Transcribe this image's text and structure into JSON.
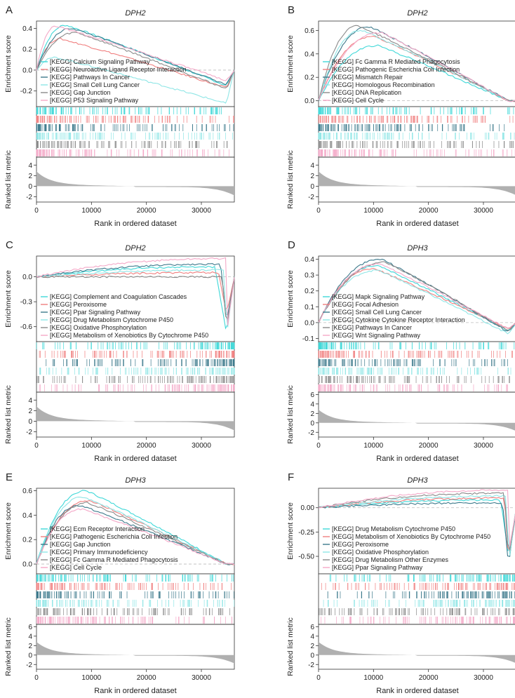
{
  "common": {
    "ylabel_top": "Enrichment score",
    "ylabel_bottom": "Ranked list metric",
    "xlabel": "Rank in ordered dataset",
    "x_ticks": [
      "0",
      "10000",
      "20000",
      "30000"
    ],
    "metric_ticks_a": [
      "4",
      "2",
      "0",
      "-2"
    ],
    "metric_ticks_b": [
      "6",
      "4",
      "2",
      "0",
      "-2"
    ],
    "colors": [
      "#3fd8d8",
      "#f07f7f",
      "#3d7a8c",
      "#8fe6e6",
      "#8a8a8a",
      "#f4a9c8"
    ]
  },
  "chart_data": [
    {
      "type": "line",
      "panel": "A",
      "title": "DPH2",
      "ylim": [
        -0.35,
        0.47
      ],
      "y_ticks": [
        0.4,
        0.2,
        0.0,
        -0.2
      ],
      "y_tick_labels": [
        "0.4",
        "0.2",
        "0.0",
        "-0.2"
      ],
      "legend_loc": "bottom-left",
      "legend": [
        "[KEGG] Calcium Signaling Pathway",
        "[KEGG] Neuroactive Ligand Receptor Interaction",
        "[KEGG] Pathways In Cancer",
        "[KEGG] Small Cell Lung Cancer",
        "[KEGG] Gap Junction",
        "[KEGG] P53 Signaling Pathway"
      ],
      "series": [
        {
          "name": "[KEGG] Calcium Signaling Pathway",
          "peak": 0.43,
          "end": -0.15,
          "peakX": 0.15
        },
        {
          "name": "[KEGG] Neuroactive Ligand Receptor Interaction",
          "peak": 0.3,
          "end": -0.17,
          "peakX": 0.12
        },
        {
          "name": "[KEGG] Pathways In Cancer",
          "peak": 0.4,
          "end": -0.14,
          "peakX": 0.18
        },
        {
          "name": "[KEGG] Small Cell Lung Cancer",
          "peak": 0.12,
          "end": -0.32,
          "peakX": 0.1
        },
        {
          "name": "[KEGG] Gap Junction",
          "peak": 0.36,
          "end": -0.18,
          "peakX": 0.2
        },
        {
          "name": "[KEGG] P53 Signaling Pathway",
          "peak": 0.42,
          "end": -0.1,
          "peakX": 0.1
        }
      ]
    },
    {
      "type": "line",
      "panel": "B",
      "title": "DPH2",
      "ylim": [
        -0.05,
        0.68
      ],
      "y_ticks": [
        0.6,
        0.4,
        0.2,
        0.0
      ],
      "y_tick_labels": [
        "0.6",
        "0.4",
        "0.2",
        "0.0"
      ],
      "legend_loc": "bottom-left",
      "legend": [
        "[KEGG] Fc Gamma R Mediated Phagocytosis",
        "[KEGG] Pathogenic Escherichia Coli Infection",
        "[KEGG] Mismatch Repair",
        "[KEGG] Homologous Recombination",
        "[KEGG] DNA Replication",
        "[KEGG] Cell Cycle"
      ],
      "series": [
        {
          "name": "[KEGG] Fc Gamma R Mediated Phagocytosis",
          "peak": 0.47,
          "end": 0.0,
          "peakX": 0.3
        },
        {
          "name": "[KEGG] Pathogenic Escherichia Coli Infection",
          "peak": 0.55,
          "end": 0.0,
          "peakX": 0.28
        },
        {
          "name": "[KEGG] Mismatch Repair",
          "peak": 0.63,
          "end": 0.0,
          "peakX": 0.26
        },
        {
          "name": "[KEGG] Homologous Recombination",
          "peak": 0.6,
          "end": 0.0,
          "peakX": 0.22
        },
        {
          "name": "[KEGG] DNA Replication",
          "peak": 0.64,
          "end": 0.0,
          "peakX": 0.2
        },
        {
          "name": "[KEGG] Cell Cycle",
          "peak": 0.58,
          "end": 0.0,
          "peakX": 0.32
        }
      ]
    },
    {
      "type": "line",
      "panel": "C",
      "title": "DPH2",
      "ylim": [
        -0.78,
        0.25
      ],
      "y_ticks": [
        0.0,
        -0.3,
        -0.6
      ],
      "y_tick_labels": [
        "0.0",
        "-0.3",
        "-0.6"
      ],
      "legend_loc": "bottom-left",
      "legend": [
        "[KEGG] Complement and Coagulation Cascades",
        "[KEGG] Peroxisome",
        "[KEGG] Ppar Signaling Pathway",
        "[KEGG] Drug Metabolism Cytochrome P450",
        "[KEGG] Oxidative Phosphorylation",
        "[KEGG] Metabolism of Xenobiotics By Cytochrome P450"
      ],
      "series": [
        {
          "name": "[KEGG] Complement and Coagulation Cascades",
          "peak": 0.12,
          "end": -0.68,
          "peakX": 0.9
        },
        {
          "name": "[KEGG] Peroxisome",
          "peak": 0.05,
          "end": -0.45,
          "peakX": 0.92
        },
        {
          "name": "[KEGG] Ppar Signaling Pathway",
          "peak": 0.15,
          "end": -0.55,
          "peakX": 0.93
        },
        {
          "name": "[KEGG] Drug Metabolism Cytochrome P450",
          "peak": 0.08,
          "end": -0.72,
          "peakX": 0.95
        },
        {
          "name": "[KEGG] Oxidative Phosphorylation",
          "peak": 0.0,
          "end": -0.62,
          "peakX": 0.94
        },
        {
          "name": "[KEGG] Metabolism of Xenobiotics By Cytochrome P450",
          "peak": 0.22,
          "end": -0.7,
          "peakX": 0.96
        }
      ]
    },
    {
      "type": "line",
      "panel": "D",
      "title": "DPH3",
      "ylim": [
        -0.12,
        0.42
      ],
      "y_ticks": [
        0.4,
        0.3,
        0.2,
        0.1,
        0.0,
        -0.1
      ],
      "y_tick_labels": [
        "0.4",
        "0.3",
        "0.2",
        "0.1",
        "0.0",
        "-0.1"
      ],
      "legend_loc": "bottom-left",
      "legend": [
        "[KEGG] Mapk Signaling Pathway",
        "[KEGG] Focal Adhesion",
        "[KEGG] Small Cell Lung Cancer",
        "[KEGG] Cytokine Cytokine Receptor Interaction",
        "[KEGG] Pathways In Cancer",
        "[KEGG] Wnt Signaling Pathway"
      ],
      "series": [
        {
          "name": "[KEGG] Mapk Signaling Pathway",
          "peak": 0.36,
          "end": -0.05,
          "peakX": 0.3
        },
        {
          "name": "[KEGG] Focal Adhesion",
          "peak": 0.34,
          "end": -0.04,
          "peakX": 0.28
        },
        {
          "name": "[KEGG] Small Cell Lung Cancer",
          "peak": 0.4,
          "end": -0.06,
          "peakX": 0.32
        },
        {
          "name": "[KEGG] Cytokine Cytokine Receptor Interaction",
          "peak": 0.33,
          "end": -0.07,
          "peakX": 0.3
        },
        {
          "name": "[KEGG] Pathways In Cancer",
          "peak": 0.38,
          "end": -0.05,
          "peakX": 0.34
        },
        {
          "name": "[KEGG] Wnt Signaling Pathway",
          "peak": 0.37,
          "end": -0.04,
          "peakX": 0.31
        }
      ]
    },
    {
      "type": "line",
      "panel": "E",
      "title": "DPH3",
      "ylim": [
        -0.08,
        0.62
      ],
      "y_ticks": [
        0.6,
        0.4,
        0.2,
        0.0
      ],
      "y_tick_labels": [
        "0.6",
        "0.4",
        "0.2",
        "0.0"
      ],
      "legend_loc": "bottom-left",
      "legend": [
        "[KEGG] Ecm Receptor Interaction",
        "[KEGG] Pathogenic Escherichia Coli Infection",
        "[KEGG] Gap Junction",
        "[KEGG] Primary Immunodeficiency",
        "[KEGG] Fc Gamma R Mediated Phagocytosis",
        "[KEGG] Cell Cycle"
      ],
      "series": [
        {
          "name": "[KEGG] Ecm Receptor Interaction",
          "peak": 0.6,
          "end": 0.0,
          "peakX": 0.25
        },
        {
          "name": "[KEGG] Pathogenic Escherichia Coli Infection",
          "peak": 0.52,
          "end": 0.0,
          "peakX": 0.27
        },
        {
          "name": "[KEGG] Gap Junction",
          "peak": 0.48,
          "end": 0.0,
          "peakX": 0.22
        },
        {
          "name": "[KEGG] Primary Immunodeficiency",
          "peak": 0.55,
          "end": 0.0,
          "peakX": 0.24
        },
        {
          "name": "[KEGG] Fc Gamma R Mediated Phagocytosis",
          "peak": 0.5,
          "end": 0.0,
          "peakX": 0.26
        },
        {
          "name": "[KEGG] Cell Cycle",
          "peak": 0.45,
          "end": 0.0,
          "peakX": 0.23
        }
      ]
    },
    {
      "type": "line",
      "panel": "F",
      "title": "DPH3",
      "ylim": [
        -0.68,
        0.2
      ],
      "y_ticks": [
        0.0,
        -0.25,
        -0.5
      ],
      "y_tick_labels": [
        "0.00",
        "-0.25",
        "-0.50"
      ],
      "legend_loc": "bottom-left",
      "legend": [
        "[KEGG] Drug Metabolism Cytochrome P450",
        "[KEGG] Metabolism of Xenobiotics By Cytochrome P450",
        "[KEGG] Peroxisome",
        "[KEGG] Oxidative Phosphorylation",
        "[KEGG] Drug Metabolism Other Enzymes",
        "[KEGG] Ppar Signaling Pathway"
      ],
      "series": [
        {
          "name": "[KEGG] Drug Metabolism Cytochrome P450",
          "peak": 0.08,
          "end": -0.5,
          "peakX": 0.92
        },
        {
          "name": "[KEGG] Metabolism of Xenobiotics By Cytochrome P450",
          "peak": 0.1,
          "end": -0.55,
          "peakX": 0.94
        },
        {
          "name": "[KEGG] Peroxisome",
          "peak": 0.05,
          "end": -0.6,
          "peakX": 0.93
        },
        {
          "name": "[KEGG] Oxidative Phosphorylation",
          "peak": 0.12,
          "end": -0.58,
          "peakX": 0.95
        },
        {
          "name": "[KEGG] Drug Metabolism Other Enzymes",
          "peak": 0.15,
          "end": -0.52,
          "peakX": 0.94
        },
        {
          "name": "[KEGG] Ppar Signaling Pathway",
          "peak": 0.18,
          "end": -0.47,
          "peakX": 0.96
        }
      ]
    }
  ]
}
